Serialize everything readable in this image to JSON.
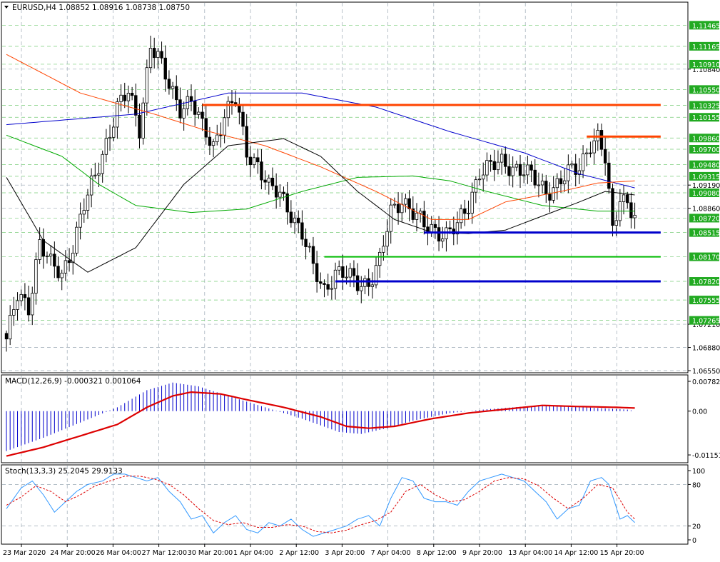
{
  "header": {
    "symbol_text": "EURUSD,H4  1.08852 1.08916 1.08738 1.08750",
    "macd_text": "MACD(12,26,9) -0.000321 0.001064",
    "stoch_text": "Stoch(13,3,3) 25.2045 29.9133"
  },
  "colors": {
    "background": "#ffffff",
    "frame": "#000000",
    "grid": "#9aa8b4",
    "bull": "#ffffff",
    "bear": "#000000",
    "ma_blue": "#0000cc",
    "ma_black": "#000000",
    "ma_green": "#00aa00",
    "ma_orange": "#ff4400",
    "level_orange": "#ff4400",
    "level_blue": "#0000cc",
    "level_green": "#00bb00",
    "macd_hist": "#0000cc",
    "macd_signal": "#dd0000",
    "stoch_main": "#3399ff",
    "stoch_signal": "#dd0000",
    "green_label": "#22aa22"
  },
  "chart_data": [
    {
      "type": "candlestick",
      "title": "EURUSD,H4",
      "ylim": [
        1.0655,
        1.1158
      ],
      "price_labels_plain": [
        "1.10840",
        "1.09190",
        "1.08860",
        "1.07210",
        "1.06880",
        "1.06550"
      ],
      "price_labels_green": [
        "1.11465",
        "1.11165",
        "1.10910",
        "1.10550",
        "1.10325",
        "1.10155",
        "1.09860",
        "1.09700",
        "1.09480",
        "1.09315",
        "1.09080",
        "1.08720",
        "1.08515",
        "1.08170",
        "1.07820",
        "1.07555",
        "1.07265"
      ],
      "time_labels": [
        "23 Mar 2020",
        "24 Mar 20:00",
        "26 Mar 04:00",
        "27 Mar 12:00",
        "30 Mar 20:00",
        "1 Apr 04:00",
        "2 Apr 12:00",
        "3 Apr 20:00",
        "7 Apr 04:00",
        "8 Apr 12:00",
        "9 Apr 20:00",
        "13 Apr 04:00",
        "14 Apr 12:00",
        "15 Apr 20:00"
      ],
      "close_anchors": [
        [
          0,
          1.07
        ],
        [
          3,
          1.076
        ],
        [
          6,
          1.0745
        ],
        [
          9,
          1.084
        ],
        [
          12,
          1.0805
        ],
        [
          15,
          1.079
        ],
        [
          18,
          1.0835
        ],
        [
          21,
          1.089
        ],
        [
          24,
          1.093
        ],
        [
          27,
          1.098
        ],
        [
          30,
          1.103
        ],
        [
          33,
          1.105
        ],
        [
          36,
          1.1
        ],
        [
          39,
          1.112
        ],
        [
          41,
          1.11
        ],
        [
          44,
          1.106
        ],
        [
          47,
          1.103
        ],
        [
          50,
          1.104
        ],
        [
          53,
          1.1
        ],
        [
          56,
          1.0975
        ],
        [
          59,
          1.102
        ],
        [
          62,
          1.104
        ],
        [
          65,
          1.0965
        ],
        [
          68,
          1.095
        ],
        [
          71,
          1.0915
        ],
        [
          74,
          1.0905
        ],
        [
          77,
          1.088
        ],
        [
          80,
          1.085
        ],
        [
          83,
          1.08
        ],
        [
          86,
          1.077
        ],
        [
          89,
          1.0795
        ],
        [
          92,
          1.079
        ],
        [
          95,
          1.078
        ],
        [
          98,
          1.078
        ],
        [
          101,
          1.081
        ],
        [
          104,
          1.088
        ],
        [
          107,
          1.09
        ],
        [
          110,
          1.088
        ],
        [
          113,
          1.086
        ],
        [
          116,
          1.0855
        ],
        [
          119,
          1.085
        ],
        [
          122,
          1.086
        ],
        [
          125,
          1.089
        ],
        [
          128,
          1.094
        ],
        [
          131,
          1.0945
        ],
        [
          134,
          1.095
        ],
        [
          137,
          1.0945
        ],
        [
          140,
          1.094
        ],
        [
          143,
          1.0925
        ],
        [
          146,
          1.091
        ],
        [
          149,
          1.092
        ],
        [
          152,
          1.0935
        ],
        [
          155,
          1.0945
        ],
        [
          158,
          1.098
        ],
        [
          160,
          1.0985
        ],
        [
          162,
          1.0955
        ],
        [
          164,
          1.0852
        ],
        [
          166,
          1.0905
        ],
        [
          168,
          1.0895
        ],
        [
          170,
          1.0875
        ]
      ],
      "ma_blue": [
        [
          0,
          1.1005
        ],
        [
          35,
          1.102
        ],
        [
          60,
          1.105
        ],
        [
          80,
          1.105
        ],
        [
          100,
          1.103
        ],
        [
          120,
          1.0995
        ],
        [
          140,
          1.0965
        ],
        [
          155,
          1.0935
        ],
        [
          170,
          1.0915
        ]
      ],
      "ma_black": [
        [
          0,
          1.093
        ],
        [
          10,
          1.084
        ],
        [
          22,
          1.0795
        ],
        [
          35,
          1.083
        ],
        [
          48,
          1.092
        ],
        [
          60,
          1.0975
        ],
        [
          75,
          1.0985
        ],
        [
          85,
          1.096
        ],
        [
          95,
          1.091
        ],
        [
          105,
          1.087
        ],
        [
          115,
          1.0852
        ],
        [
          125,
          1.085
        ],
        [
          135,
          1.0855
        ],
        [
          145,
          1.0875
        ],
        [
          155,
          1.0895
        ],
        [
          162,
          1.091
        ],
        [
          170,
          1.0905
        ]
      ],
      "ma_green": [
        [
          0,
          1.099
        ],
        [
          15,
          1.096
        ],
        [
          25,
          1.092
        ],
        [
          35,
          1.089
        ],
        [
          50,
          1.088
        ],
        [
          65,
          1.0885
        ],
        [
          80,
          1.091
        ],
        [
          95,
          1.093
        ],
        [
          110,
          1.0932
        ],
        [
          120,
          1.0925
        ],
        [
          130,
          1.091
        ],
        [
          145,
          1.089
        ],
        [
          160,
          1.0882
        ],
        [
          170,
          1.0882
        ]
      ],
      "ma_orange": [
        [
          0,
          1.1105
        ],
        [
          20,
          1.105
        ],
        [
          40,
          1.102
        ],
        [
          55,
          1.0995
        ],
        [
          70,
          1.0975
        ],
        [
          85,
          1.0945
        ],
        [
          100,
          1.091
        ],
        [
          115,
          1.087
        ],
        [
          125,
          1.087
        ],
        [
          135,
          1.0895
        ],
        [
          150,
          1.091
        ],
        [
          160,
          1.0922
        ],
        [
          170,
          1.0925
        ]
      ],
      "levels": [
        {
          "color": "orange",
          "price": 1.1033,
          "from": 53,
          "to": 177
        },
        {
          "color": "orange",
          "price": 1.0988,
          "from": 157,
          "to": 177
        },
        {
          "color": "blue",
          "price": 1.08515,
          "from": 113,
          "to": 177
        },
        {
          "color": "green",
          "price": 1.0817,
          "from": 86,
          "to": 177
        },
        {
          "color": "blue",
          "price": 1.0782,
          "from": 89,
          "to": 177
        }
      ]
    },
    {
      "type": "macd",
      "ylim": [
        -0.01225,
        0.0082
      ],
      "labels": [
        "0.007824",
        "0.00",
        "-0.011512"
      ],
      "histogram": [
        [
          0,
          -0.0105
        ],
        [
          10,
          -0.007
        ],
        [
          20,
          -0.003
        ],
        [
          30,
          0.001
        ],
        [
          38,
          0.0055
        ],
        [
          45,
          0.0075
        ],
        [
          52,
          0.0065
        ],
        [
          60,
          0.004
        ],
        [
          70,
          0.001
        ],
        [
          80,
          -0.002
        ],
        [
          90,
          -0.0055
        ],
        [
          96,
          -0.006
        ],
        [
          103,
          -0.0045
        ],
        [
          110,
          -0.0025
        ],
        [
          120,
          -0.0005
        ],
        [
          130,
          0.0005
        ],
        [
          140,
          0.0012
        ],
        [
          150,
          0.0015
        ],
        [
          160,
          0.0008
        ],
        [
          168,
          0.0004
        ],
        [
          170,
          0.0
        ]
      ],
      "signal": [
        [
          0,
          -0.0118
        ],
        [
          10,
          -0.0095
        ],
        [
          20,
          -0.0065
        ],
        [
          30,
          -0.0035
        ],
        [
          38,
          0.001
        ],
        [
          45,
          0.004
        ],
        [
          50,
          0.005
        ],
        [
          58,
          0.0045
        ],
        [
          65,
          0.003
        ],
        [
          75,
          0.001
        ],
        [
          85,
          -0.0015
        ],
        [
          92,
          -0.004
        ],
        [
          98,
          -0.0045
        ],
        [
          105,
          -0.004
        ],
        [
          115,
          -0.002
        ],
        [
          125,
          -0.0005
        ],
        [
          135,
          0.0005
        ],
        [
          145,
          0.0015
        ],
        [
          155,
          0.0012
        ],
        [
          165,
          0.001
        ],
        [
          170,
          0.0008
        ]
      ]
    },
    {
      "type": "stochastic",
      "ylim": [
        0,
        100
      ],
      "labels": [
        "100",
        "80",
        "20",
        "0"
      ],
      "main": [
        [
          0,
          45
        ],
        [
          4,
          75
        ],
        [
          7,
          85
        ],
        [
          10,
          65
        ],
        [
          13,
          40
        ],
        [
          16,
          55
        ],
        [
          19,
          70
        ],
        [
          22,
          80
        ],
        [
          26,
          85
        ],
        [
          29,
          95
        ],
        [
          32,
          95
        ],
        [
          35,
          90
        ],
        [
          38,
          85
        ],
        [
          41,
          90
        ],
        [
          44,
          70
        ],
        [
          47,
          55
        ],
        [
          50,
          30
        ],
        [
          53,
          35
        ],
        [
          56,
          10
        ],
        [
          59,
          25
        ],
        [
          62,
          35
        ],
        [
          65,
          15
        ],
        [
          68,
          10
        ],
        [
          71,
          25
        ],
        [
          74,
          20
        ],
        [
          77,
          30
        ],
        [
          80,
          15
        ],
        [
          83,
          5
        ],
        [
          86,
          10
        ],
        [
          89,
          15
        ],
        [
          92,
          20
        ],
        [
          95,
          30
        ],
        [
          98,
          35
        ],
        [
          101,
          20
        ],
        [
          104,
          60
        ],
        [
          107,
          90
        ],
        [
          110,
          85
        ],
        [
          113,
          60
        ],
        [
          116,
          55
        ],
        [
          119,
          55
        ],
        [
          122,
          50
        ],
        [
          125,
          70
        ],
        [
          128,
          85
        ],
        [
          131,
          90
        ],
        [
          134,
          95
        ],
        [
          137,
          90
        ],
        [
          140,
          85
        ],
        [
          143,
          70
        ],
        [
          146,
          55
        ],
        [
          149,
          30
        ],
        [
          152,
          45
        ],
        [
          155,
          50
        ],
        [
          158,
          85
        ],
        [
          161,
          90
        ],
        [
          163,
          80
        ],
        [
          166,
          30
        ],
        [
          168,
          35
        ],
        [
          170,
          25
        ]
      ],
      "signal": [
        [
          0,
          50
        ],
        [
          4,
          62
        ],
        [
          8,
          78
        ],
        [
          12,
          70
        ],
        [
          16,
          55
        ],
        [
          20,
          65
        ],
        [
          24,
          78
        ],
        [
          28,
          85
        ],
        [
          32,
          92
        ],
        [
          36,
          92
        ],
        [
          40,
          88
        ],
        [
          44,
          80
        ],
        [
          48,
          65
        ],
        [
          52,
          45
        ],
        [
          56,
          28
        ],
        [
          60,
          22
        ],
        [
          64,
          25
        ],
        [
          68,
          18
        ],
        [
          72,
          18
        ],
        [
          76,
          22
        ],
        [
          80,
          20
        ],
        [
          84,
          12
        ],
        [
          88,
          10
        ],
        [
          92,
          14
        ],
        [
          96,
          22
        ],
        [
          100,
          28
        ],
        [
          104,
          40
        ],
        [
          108,
          70
        ],
        [
          112,
          80
        ],
        [
          116,
          65
        ],
        [
          120,
          55
        ],
        [
          124,
          58
        ],
        [
          128,
          70
        ],
        [
          132,
          85
        ],
        [
          136,
          90
        ],
        [
          140,
          88
        ],
        [
          144,
          78
        ],
        [
          148,
          60
        ],
        [
          152,
          45
        ],
        [
          156,
          60
        ],
        [
          160,
          80
        ],
        [
          164,
          75
        ],
        [
          168,
          40
        ],
        [
          170,
          30
        ]
      ]
    }
  ]
}
